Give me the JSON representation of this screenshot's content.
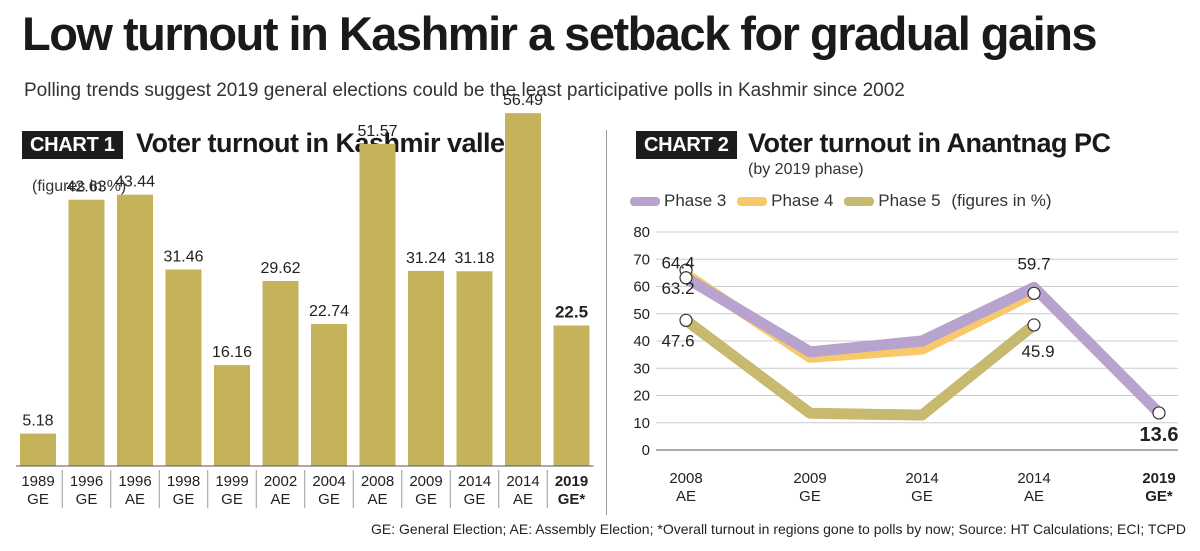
{
  "headline": "Low turnout in Kashmir a setback for gradual gains",
  "subhead": "Polling trends suggest 2019 general elections could be the least participative polls in Kashmir since 2002",
  "footer": "GE: General Election; AE: Assembly Election; *Overall turnout in regions gone to polls by now; Source: HT Calculations; ECI; TCPD",
  "colors": {
    "bar": "#c4b35b",
    "phase3": "#b8a3cf",
    "phase4": "#f7c96a",
    "phase5": "#c8b971"
  },
  "chart1": {
    "tag": "CHART 1",
    "title": "Voter turnout in Kashmir valley",
    "note": "(figures in %)"
  },
  "chart2": {
    "tag": "CHART 2",
    "title": "Voter turnout in Anantnag PC",
    "subtitle": "(by 2019 phase)",
    "note": "(figures in %)"
  },
  "chart_data": [
    {
      "type": "bar",
      "title": "Voter turnout in Kashmir valley",
      "categories": [
        {
          "year": "1989",
          "type": "GE"
        },
        {
          "year": "1996",
          "type": "GE"
        },
        {
          "year": "1996",
          "type": "AE"
        },
        {
          "year": "1998",
          "type": "GE"
        },
        {
          "year": "1999",
          "type": "GE"
        },
        {
          "year": "2002",
          "type": "AE"
        },
        {
          "year": "2004",
          "type": "GE"
        },
        {
          "year": "2008",
          "type": "AE"
        },
        {
          "year": "2009",
          "type": "GE"
        },
        {
          "year": "2014",
          "type": "GE"
        },
        {
          "year": "2014",
          "type": "AE"
        },
        {
          "year": "2019",
          "type": "GE*",
          "bold": true
        }
      ],
      "values": [
        5.18,
        42.63,
        43.44,
        31.46,
        16.16,
        29.62,
        22.74,
        51.57,
        31.24,
        31.18,
        56.49,
        22.5
      ],
      "labels": [
        "5.18",
        "42.63",
        "43.44",
        "31.46",
        "16.16",
        "29.62",
        "22.74",
        "51.57",
        "31.24",
        "31.18",
        "56.49",
        "22.5"
      ],
      "ylim": [
        0,
        65
      ]
    },
    {
      "type": "line",
      "title": "Voter turnout in Anantnag PC",
      "categories": [
        {
          "year": "2008",
          "type": "AE"
        },
        {
          "year": "2009",
          "type": "GE"
        },
        {
          "year": "2014",
          "type": "GE"
        },
        {
          "year": "2014",
          "type": "AE"
        },
        {
          "year": "2019",
          "type": "GE*",
          "bold": true
        }
      ],
      "series": [
        {
          "name": "Phase 3",
          "values": [
            63.2,
            36,
            40,
            59.7,
            13.6
          ]
        },
        {
          "name": "Phase 4",
          "values": [
            64.4,
            34,
            37,
            57.5,
            null
          ]
        },
        {
          "name": "Phase 5",
          "values": [
            47.6,
            13.5,
            12.8,
            45.9,
            null
          ]
        }
      ],
      "annotations": [
        {
          "text": "64.4",
          "x": 0,
          "y": 64.4
        },
        {
          "text": "63.2",
          "x": 0,
          "y": 63.2
        },
        {
          "text": "47.6",
          "x": 0,
          "y": 47.6
        },
        {
          "text": "59.7",
          "x": 3,
          "y": 59.7
        },
        {
          "text": "45.9",
          "x": 3,
          "y": 45.9
        },
        {
          "text": "13.6",
          "x": 4,
          "y": 13.6,
          "bold": true
        }
      ],
      "ylim": [
        0,
        80
      ],
      "yticks": [
        0,
        10,
        20,
        30,
        40,
        50,
        60,
        70,
        80
      ],
      "grid": true,
      "legend": "top-left"
    }
  ]
}
